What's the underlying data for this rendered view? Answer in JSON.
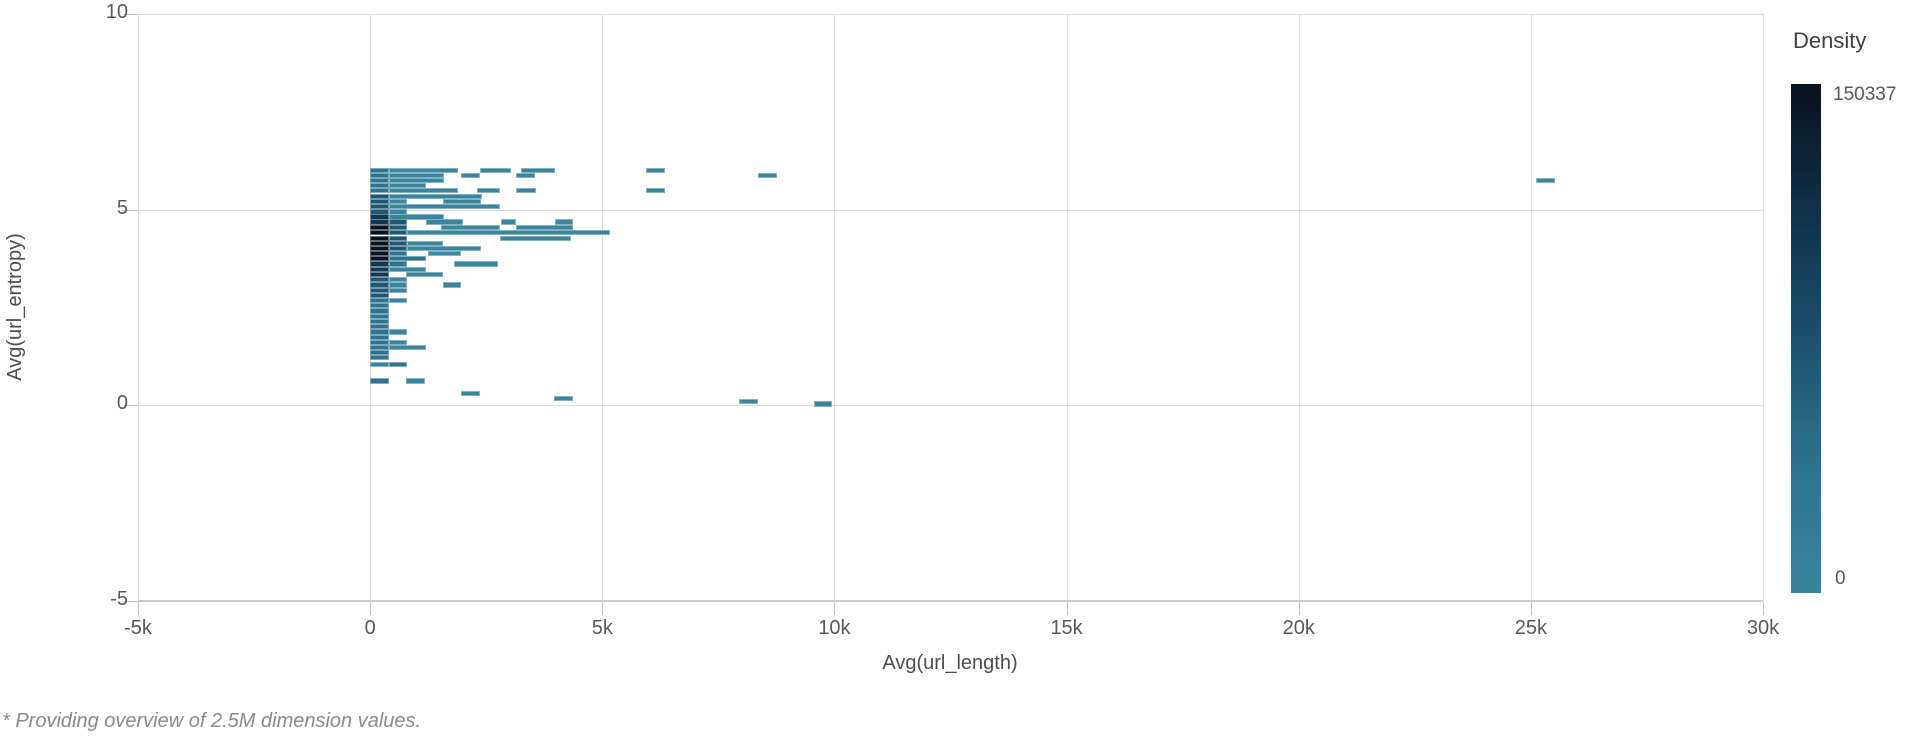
{
  "footnote": "* Providing overview of 2.5M dimension values.",
  "chart_data": {
    "type": "heatmap",
    "title": "",
    "xlabel": "Avg(url_length)",
    "ylabel": "Avg(url_entropy)",
    "xlim": [
      -5000,
      30000
    ],
    "ylim": [
      -5,
      10
    ],
    "grid": true,
    "x_ticks": [
      {
        "value": -5000,
        "label": "-5k"
      },
      {
        "value": 0,
        "label": "0"
      },
      {
        "value": 5000,
        "label": "5k"
      },
      {
        "value": 10000,
        "label": "10k"
      },
      {
        "value": 15000,
        "label": "15k"
      },
      {
        "value": 20000,
        "label": "20k"
      },
      {
        "value": 25000,
        "label": "25k"
      },
      {
        "value": 30000,
        "label": "30k"
      }
    ],
    "y_ticks": [
      {
        "value": 10,
        "label": "10"
      },
      {
        "value": 5,
        "label": "5"
      },
      {
        "value": 0,
        "label": "0"
      },
      {
        "value": -5,
        "label": "-5"
      }
    ],
    "legend": {
      "title": "Density",
      "max_label": "150337",
      "min_label": "0",
      "max_value": 150337,
      "min_value": 0,
      "position": "right"
    },
    "bin_size_note": "x in thousands of url_length units, bin width ~400; y rows ~0.13 entropy units tall",
    "density_levels": {
      "0": "#3a849e",
      "1": "#2e7390",
      "2": "#1f5875",
      "3": "#123750",
      "4": "#081220"
    },
    "rows": [
      {
        "y": 6.0,
        "segments": [
          [
            0,
            0.4,
            1
          ],
          [
            0.4,
            1.5,
            0
          ],
          [
            2.37,
            0.67,
            0
          ],
          [
            3.25,
            0.74,
            0
          ],
          [
            5.95,
            0.4,
            0
          ]
        ]
      },
      {
        "y": 5.87,
        "segments": [
          [
            0,
            0.4,
            1
          ],
          [
            0.4,
            1.2,
            0
          ],
          [
            1.96,
            0.41,
            0
          ],
          [
            3.15,
            0.4,
            0
          ],
          [
            8.36,
            0.4,
            0
          ]
        ]
      },
      {
        "y": 5.74,
        "segments": [
          [
            0,
            0.4,
            1
          ],
          [
            0.4,
            1.2,
            0
          ],
          [
            25.12,
            0.4,
            0
          ]
        ]
      },
      {
        "y": 5.61,
        "segments": [
          [
            0,
            0.4,
            1
          ],
          [
            0.4,
            0.8,
            0
          ]
        ]
      },
      {
        "y": 5.48,
        "segments": [
          [
            0,
            0.4,
            1
          ],
          [
            0.4,
            1.5,
            0
          ],
          [
            2.3,
            0.5,
            0
          ],
          [
            3.15,
            0.43,
            0
          ],
          [
            5.95,
            0.4,
            0
          ]
        ]
      },
      {
        "y": 5.34,
        "segments": [
          [
            0,
            0.4,
            2
          ],
          [
            0.4,
            2.0,
            0
          ]
        ]
      },
      {
        "y": 5.21,
        "segments": [
          [
            0,
            0.4,
            2
          ],
          [
            0.4,
            0.4,
            0
          ],
          [
            1.57,
            0.82,
            0
          ]
        ]
      },
      {
        "y": 5.08,
        "segments": [
          [
            0,
            0.4,
            2
          ],
          [
            0.4,
            2.4,
            0
          ]
        ]
      },
      {
        "y": 4.94,
        "segments": [
          [
            0,
            0.4,
            2
          ],
          [
            0.4,
            0.4,
            0
          ]
        ]
      },
      {
        "y": 4.81,
        "segments": [
          [
            0,
            0.4,
            3
          ],
          [
            0.4,
            1.2,
            0
          ]
        ]
      },
      {
        "y": 4.68,
        "segments": [
          [
            0,
            0.4,
            3
          ],
          [
            0.4,
            0.4,
            2
          ],
          [
            1.2,
            0.8,
            0
          ],
          [
            2.82,
            0.33,
            0
          ],
          [
            3.99,
            0.38,
            0
          ]
        ]
      },
      {
        "y": 4.54,
        "segments": [
          [
            0,
            0.4,
            4
          ],
          [
            0.4,
            0.4,
            2
          ],
          [
            1.53,
            1.27,
            0
          ],
          [
            3.15,
            1.22,
            0
          ]
        ]
      },
      {
        "y": 4.41,
        "segments": [
          [
            0,
            0.4,
            4
          ],
          [
            0.4,
            0.4,
            2
          ],
          [
            0.8,
            4.37,
            0
          ]
        ]
      },
      {
        "y": 4.27,
        "segments": [
          [
            0,
            0.4,
            4
          ],
          [
            0.4,
            0.4,
            2
          ],
          [
            2.8,
            1.53,
            0
          ]
        ]
      },
      {
        "y": 4.14,
        "segments": [
          [
            0,
            0.4,
            4
          ],
          [
            0.4,
            0.4,
            2
          ],
          [
            0.8,
            0.77,
            0
          ]
        ]
      },
      {
        "y": 4.01,
        "segments": [
          [
            0,
            0.4,
            4
          ],
          [
            0.4,
            0.4,
            2
          ],
          [
            0.8,
            1.59,
            0
          ]
        ]
      },
      {
        "y": 3.87,
        "segments": [
          [
            0,
            0.4,
            4
          ],
          [
            0.4,
            0.4,
            1
          ],
          [
            1.25,
            0.71,
            0
          ]
        ]
      },
      {
        "y": 3.74,
        "segments": [
          [
            0,
            0.4,
            4
          ],
          [
            0.4,
            0.8,
            1
          ]
        ]
      },
      {
        "y": 3.61,
        "segments": [
          [
            0,
            0.4,
            3
          ],
          [
            0.4,
            0.4,
            1
          ],
          [
            1.8,
            0.96,
            0
          ]
        ]
      },
      {
        "y": 3.47,
        "segments": [
          [
            0,
            0.4,
            3
          ],
          [
            0.4,
            0.8,
            0
          ]
        ]
      },
      {
        "y": 3.34,
        "segments": [
          [
            0,
            0.4,
            3
          ],
          [
            0.78,
            0.79,
            0
          ]
        ]
      },
      {
        "y": 3.21,
        "segments": [
          [
            0,
            0.4,
            2
          ],
          [
            0.4,
            0.4,
            0
          ]
        ]
      },
      {
        "y": 3.07,
        "segments": [
          [
            0,
            0.4,
            2
          ],
          [
            0.4,
            0.4,
            0
          ],
          [
            1.57,
            0.39,
            0
          ]
        ]
      },
      {
        "y": 2.94,
        "segments": [
          [
            0,
            0.4,
            2
          ],
          [
            0.4,
            0.4,
            0
          ]
        ]
      },
      {
        "y": 2.81,
        "segments": [
          [
            0,
            0.4,
            2
          ]
        ]
      },
      {
        "y": 2.67,
        "segments": [
          [
            0,
            0.4,
            1
          ],
          [
            0.4,
            0.4,
            0
          ]
        ]
      },
      {
        "y": 2.54,
        "segments": [
          [
            0,
            0.4,
            1
          ]
        ]
      },
      {
        "y": 2.41,
        "segments": [
          [
            0,
            0.4,
            1
          ]
        ]
      },
      {
        "y": 2.27,
        "segments": [
          [
            0,
            0.4,
            1
          ]
        ]
      },
      {
        "y": 2.14,
        "segments": [
          [
            0,
            0.4,
            1
          ]
        ]
      },
      {
        "y": 2.01,
        "segments": [
          [
            0,
            0.4,
            1
          ]
        ]
      },
      {
        "y": 1.87,
        "segments": [
          [
            0,
            0.4,
            1
          ],
          [
            0.4,
            0.4,
            0
          ]
        ]
      },
      {
        "y": 1.74,
        "segments": [
          [
            0,
            0.4,
            1
          ]
        ]
      },
      {
        "y": 1.61,
        "segments": [
          [
            0,
            0.4,
            1
          ],
          [
            0.4,
            0.4,
            0
          ]
        ]
      },
      {
        "y": 1.47,
        "segments": [
          [
            0,
            0.4,
            1
          ],
          [
            0.4,
            0.8,
            0
          ]
        ]
      },
      {
        "y": 1.34,
        "segments": [
          [
            0,
            0.4,
            1
          ]
        ]
      },
      {
        "y": 1.21,
        "segments": [
          [
            0,
            0.4,
            1
          ]
        ]
      },
      {
        "y": 1.05,
        "segments": [
          [
            0,
            0.4,
            0
          ],
          [
            0.4,
            0.4,
            1
          ]
        ]
      },
      {
        "y": 0.62,
        "segments": [
          [
            0,
            0.4,
            1
          ],
          [
            0.78,
            0.4,
            0
          ]
        ]
      },
      {
        "y": 0.31,
        "segments": [
          [
            1.96,
            0.41,
            0
          ]
        ]
      },
      {
        "y": 0.18,
        "segments": [
          [
            3.97,
            0.4,
            0
          ]
        ]
      },
      {
        "y": 0.1,
        "segments": [
          [
            7.95,
            0.4,
            0
          ]
        ]
      },
      {
        "y": 0.03,
        "segments": [
          [
            9.55,
            0.39,
            0
          ]
        ]
      }
    ]
  }
}
